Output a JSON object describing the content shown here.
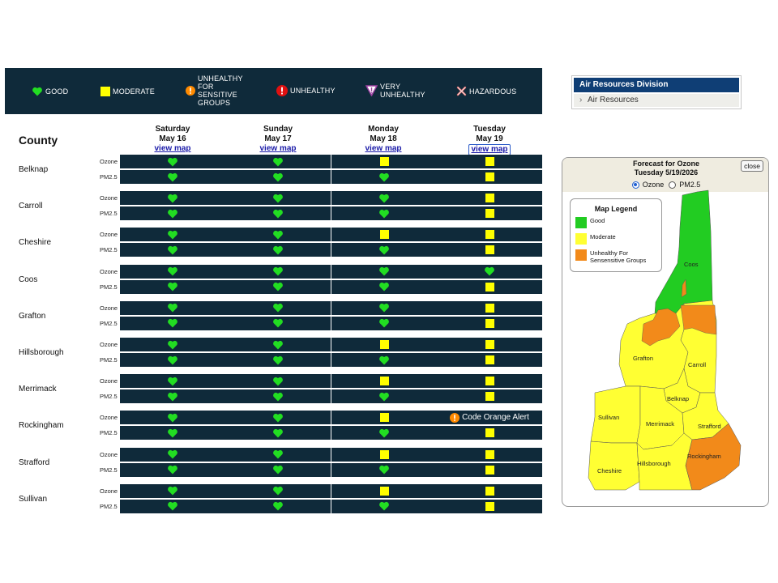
{
  "legend": [
    {
      "label": "GOOD",
      "icon": "heart-icon",
      "color": "#22dd22"
    },
    {
      "label": "MODERATE",
      "icon": "square-icon",
      "color": "#ffff00"
    },
    {
      "label": "UNHEALTHY\nFOR\nSENSITIVE\nGROUPS",
      "icon": "exclamation-circle-icon",
      "color": "#ff8a00"
    },
    {
      "label": "UNHEALTHY",
      "icon": "exclamation-circle-icon",
      "color": "#e01010"
    },
    {
      "label": "VERY\nUNHEALTHY",
      "icon": "triangle-exclamation-icon",
      "color": "#9b3ea0"
    },
    {
      "label": "HAZARDOUS",
      "icon": "x-icon",
      "color": "#e07070"
    }
  ],
  "side_nav": {
    "header": "Air Resources Division",
    "item": "Air Resources"
  },
  "table": {
    "county_header": "County",
    "days": [
      {
        "weekday": "Saturday",
        "date": "May 16",
        "link": "view map"
      },
      {
        "weekday": "Sunday",
        "date": "May 17",
        "link": "view map"
      },
      {
        "weekday": "Monday",
        "date": "May 18",
        "link": "view map"
      },
      {
        "weekday": "Tuesday",
        "date": "May 19",
        "link": "view map"
      }
    ],
    "pollutants": [
      "Ozone",
      "PM2.5"
    ],
    "rows": [
      {
        "county": "Belknap",
        "ozone": [
          "good",
          "good",
          "moderate",
          "moderate"
        ],
        "pm25": [
          "good",
          "good",
          "good",
          "moderate"
        ]
      },
      {
        "county": "Carroll",
        "ozone": [
          "good",
          "good",
          "good",
          "moderate"
        ],
        "pm25": [
          "good",
          "good",
          "good",
          "moderate"
        ]
      },
      {
        "county": "Cheshire",
        "ozone": [
          "good",
          "good",
          "moderate",
          "moderate"
        ],
        "pm25": [
          "good",
          "good",
          "good",
          "moderate"
        ]
      },
      {
        "county": "Coos",
        "ozone": [
          "good",
          "good",
          "good",
          "good"
        ],
        "pm25": [
          "good",
          "good",
          "good",
          "moderate"
        ]
      },
      {
        "county": "Grafton",
        "ozone": [
          "good",
          "good",
          "good",
          "moderate"
        ],
        "pm25": [
          "good",
          "good",
          "good",
          "moderate"
        ]
      },
      {
        "county": "Hillsborough",
        "ozone": [
          "good",
          "good",
          "moderate",
          "moderate"
        ],
        "pm25": [
          "good",
          "good",
          "good",
          "moderate"
        ]
      },
      {
        "county": "Merrimack",
        "ozone": [
          "good",
          "good",
          "moderate",
          "moderate"
        ],
        "pm25": [
          "good",
          "good",
          "good",
          "moderate"
        ]
      },
      {
        "county": "Rockingham",
        "ozone": [
          "good",
          "good",
          "moderate",
          "alert"
        ],
        "pm25": [
          "good",
          "good",
          "good",
          "moderate"
        ]
      },
      {
        "county": "Strafford",
        "ozone": [
          "good",
          "good",
          "moderate",
          "moderate"
        ],
        "pm25": [
          "good",
          "good",
          "good",
          "moderate"
        ]
      },
      {
        "county": "Sullivan",
        "ozone": [
          "good",
          "good",
          "moderate",
          "moderate"
        ],
        "pm25": [
          "good",
          "good",
          "good",
          "moderate"
        ]
      }
    ],
    "alert_text": "Code Orange Alert"
  },
  "map_panel": {
    "title_line1": "Forecast for Ozone",
    "title_line2": "Tuesday 5/19/2026",
    "close_label": "close",
    "radio_ozone": "Ozone",
    "radio_pm25": "PM2.5",
    "selected": "Ozone",
    "legend_title": "Map Legend",
    "legend_items": [
      {
        "label": "Good",
        "color": "#22cc22"
      },
      {
        "label": "Moderate",
        "color": "#ffff33"
      },
      {
        "label": "Unhealthy For\nSensensitive Groups",
        "color": "#f28a1a"
      }
    ],
    "counties": [
      "Coos",
      "Grafton",
      "Carroll",
      "Belknap",
      "Sullivan",
      "Merrimack",
      "Strafford",
      "Cheshire",
      "Hillsborough",
      "Rockingham"
    ]
  },
  "colors": {
    "dark": "#0f2a3a",
    "good": "#22dd22",
    "moderate": "#ffff00",
    "usg": "#ff8a00"
  }
}
